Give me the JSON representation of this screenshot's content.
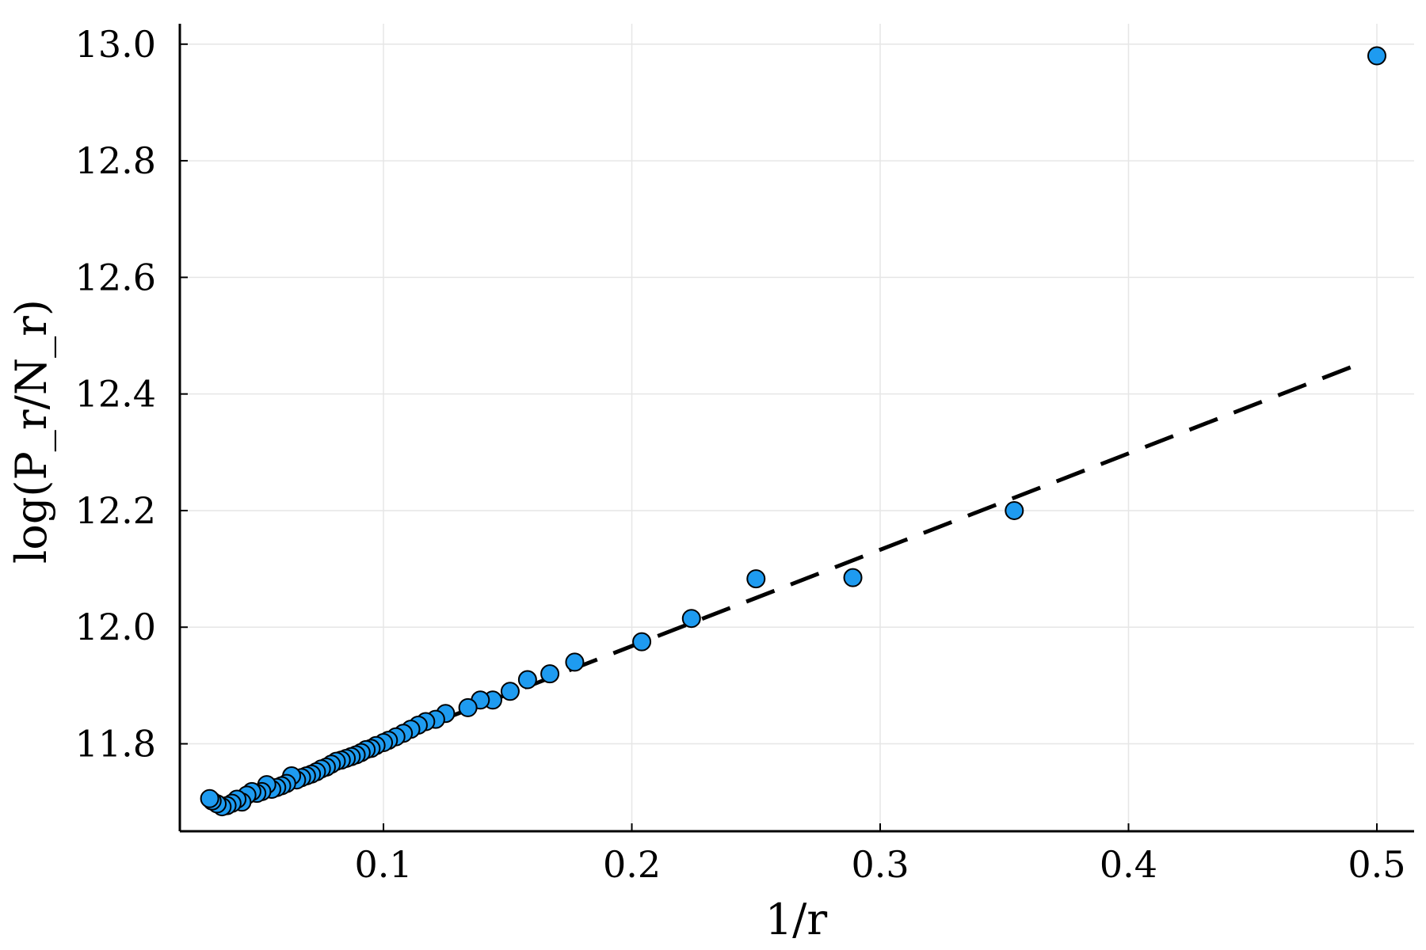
{
  "chart_data": {
    "type": "scatter",
    "title": "",
    "xlabel": "1/r",
    "ylabel": "log(P_r/N_r)",
    "xlim": [
      0.018,
      0.515
    ],
    "ylim": [
      11.65,
      13.035
    ],
    "grid": true,
    "legend": "none",
    "x_ticks": [
      0.1,
      0.2,
      0.3,
      0.4,
      0.5
    ],
    "x_tick_labels": [
      "0.1",
      "0.2",
      "0.3",
      "0.4",
      "0.5"
    ],
    "y_ticks": [
      11.8,
      12.0,
      12.2,
      12.4,
      12.6,
      12.8,
      13.0
    ],
    "y_tick_labels": [
      "11.8",
      "12.0",
      "12.2",
      "12.4",
      "12.6",
      "12.8",
      "13.0"
    ],
    "colors": {
      "points": "#1e9bf0",
      "point_edge": "#000000",
      "fit_line": "#000000",
      "grid": "#e6e6e6",
      "axis": "#000000"
    },
    "series": [
      {
        "kind": "points",
        "x": [
          0.5,
          0.354,
          0.289,
          0.25,
          0.224,
          0.204,
          0.177,
          0.167,
          0.158,
          0.151,
          0.144,
          0.139,
          0.134,
          0.125,
          0.121,
          0.117,
          0.114,
          0.111,
          0.108,
          0.105,
          0.102,
          0.1,
          0.097,
          0.095,
          0.093,
          0.091,
          0.089,
          0.087,
          0.085,
          0.083,
          0.081,
          0.079,
          0.077,
          0.075,
          0.073,
          0.071,
          0.069,
          0.067,
          0.065,
          0.063,
          0.061,
          0.059,
          0.057,
          0.055,
          0.053,
          0.051,
          0.049,
          0.047,
          0.045,
          0.043,
          0.041,
          0.039,
          0.037,
          0.035,
          0.033,
          0.031,
          0.03
        ],
        "y": [
          12.98,
          12.2,
          12.085,
          12.083,
          12.015,
          11.975,
          11.94,
          11.92,
          11.91,
          11.89,
          11.875,
          11.875,
          11.862,
          11.852,
          11.842,
          11.838,
          11.832,
          11.825,
          11.818,
          11.812,
          11.806,
          11.802,
          11.797,
          11.792,
          11.79,
          11.785,
          11.781,
          11.778,
          11.775,
          11.772,
          11.77,
          11.765,
          11.76,
          11.757,
          11.752,
          11.748,
          11.745,
          11.742,
          11.738,
          11.745,
          11.732,
          11.728,
          11.725,
          11.722,
          11.73,
          11.718,
          11.715,
          11.718,
          11.712,
          11.7,
          11.705,
          11.698,
          11.694,
          11.692,
          11.697,
          11.702,
          11.706
        ]
      },
      {
        "kind": "fit-line",
        "style": "dashed",
        "x": [
          0.032,
          0.495
        ],
        "y": [
          11.69,
          12.455
        ]
      }
    ]
  }
}
